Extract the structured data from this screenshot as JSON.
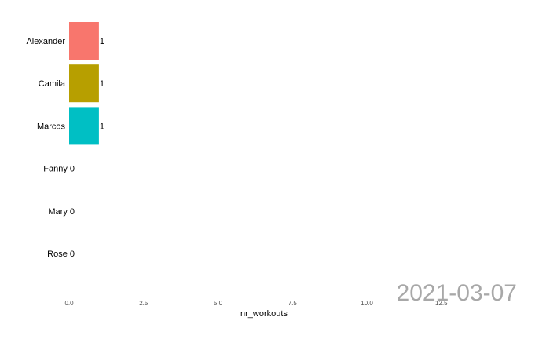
{
  "chart_data": {
    "type": "bar",
    "orientation": "horizontal",
    "categories": [
      "Alexander",
      "Camila",
      "Marcos",
      "Fanny",
      "Mary",
      "Rose"
    ],
    "values": [
      1,
      1,
      1,
      0,
      0,
      0
    ],
    "value_labels": [
      "1",
      "1",
      "1",
      "0",
      "0",
      "0"
    ],
    "category_labels": [
      "Alexander",
      "Camila",
      "Marcos",
      "Fanny 0",
      "Mary 0",
      "Rose 0"
    ],
    "colors": [
      "#F8766D",
      "#B79F00",
      "#00BFC4",
      "#619CFF",
      "#00BA38",
      "#F564E3"
    ],
    "xlabel": "nr_workouts",
    "xlim": [
      0,
      15
    ],
    "xticks": [
      0,
      2.5,
      5,
      7.5,
      10,
      12.5
    ],
    "xtick_labels": [
      "0.0",
      "2.5",
      "5.0",
      "7.5",
      "10.0",
      "12.5"
    ],
    "grid": false,
    "legend": "none",
    "annotation": "2021-03-07"
  }
}
